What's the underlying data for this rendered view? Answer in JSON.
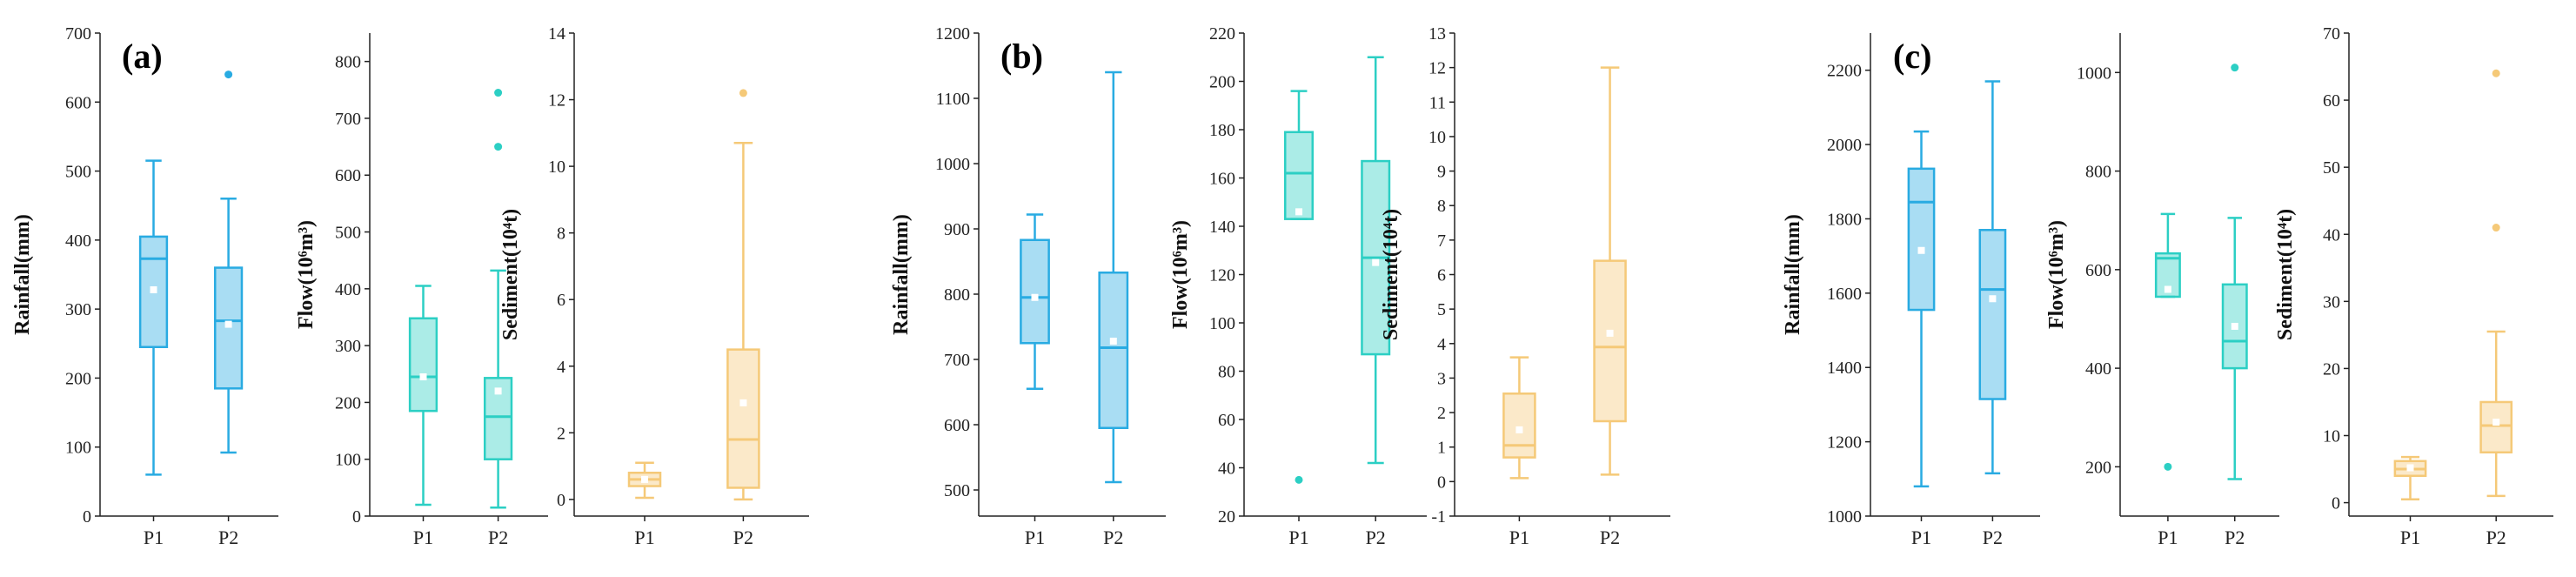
{
  "colors": {
    "rainfall": "#29ABE2",
    "flow": "#2CCFC4",
    "sediment": "#F5C978",
    "mean_marker": "#ffffff",
    "axis": "#222222"
  },
  "chart_data": [
    {
      "panel": "(a)",
      "type": "box",
      "variable": "rainfall",
      "ylabel": "Rainfall(mm)",
      "ylim": [
        0,
        700
      ],
      "yticks": [
        0,
        100,
        200,
        300,
        400,
        500,
        600,
        700
      ],
      "categories": [
        "P1",
        "P2"
      ],
      "boxes": [
        {
          "category": "P1",
          "min": 60,
          "q1": 245,
          "median": 373,
          "q3": 405,
          "max": 515,
          "mean": 328,
          "outliers": []
        },
        {
          "category": "P2",
          "min": 92,
          "q1": 185,
          "median": 283,
          "q3": 360,
          "max": 460,
          "mean": 278,
          "outliers": [
            640
          ]
        }
      ]
    },
    {
      "panel": "(a)",
      "type": "box",
      "variable": "flow",
      "ylabel": "Flow(10⁶m³)",
      "ylim": [
        0,
        850
      ],
      "yticks": [
        0,
        100,
        200,
        300,
        400,
        500,
        600,
        700,
        800
      ],
      "categories": [
        "P1",
        "P2"
      ],
      "boxes": [
        {
          "category": "P1",
          "min": 20,
          "q1": 185,
          "median": 245,
          "q3": 348,
          "max": 405,
          "mean": 245,
          "outliers": []
        },
        {
          "category": "P2",
          "min": 15,
          "q1": 100,
          "median": 175,
          "q3": 243,
          "max": 432,
          "mean": 220,
          "outliers": [
            650,
            745
          ]
        }
      ]
    },
    {
      "panel": "(a)",
      "type": "box",
      "variable": "sediment",
      "ylabel": "Sediment(10⁴t)",
      "ylim": [
        -0.5,
        14
      ],
      "yticks": [
        0,
        2,
        4,
        6,
        8,
        10,
        12,
        14
      ],
      "categories": [
        "P1",
        "P2"
      ],
      "boxes": [
        {
          "category": "P1",
          "min": 0.05,
          "q1": 0.4,
          "median": 0.6,
          "q3": 0.8,
          "max": 1.1,
          "mean": 0.6,
          "outliers": []
        },
        {
          "category": "P2",
          "min": 0.0,
          "q1": 0.35,
          "median": 1.8,
          "q3": 4.5,
          "max": 10.7,
          "mean": 2.9,
          "outliers": [
            12.2
          ]
        }
      ]
    },
    {
      "panel": "(b)",
      "type": "box",
      "variable": "rainfall",
      "ylabel": "Rainfall(mm)",
      "ylim": [
        460,
        1200
      ],
      "yticks": [
        500,
        600,
        700,
        800,
        900,
        1000,
        1100,
        1200
      ],
      "categories": [
        "P1",
        "P2"
      ],
      "boxes": [
        {
          "category": "P1",
          "min": 655,
          "q1": 725,
          "median": 795,
          "q3": 883,
          "max": 922,
          "mean": 795,
          "outliers": []
        },
        {
          "category": "P2",
          "min": 512,
          "q1": 595,
          "median": 718,
          "q3": 833,
          "max": 1140,
          "mean": 728,
          "outliers": []
        }
      ]
    },
    {
      "panel": "(b)",
      "type": "box",
      "variable": "flow",
      "ylabel": "Flow(10⁶m³)",
      "ylim": [
        20,
        220
      ],
      "yticks": [
        20,
        40,
        60,
        80,
        100,
        120,
        140,
        160,
        180,
        200,
        220
      ],
      "categories": [
        "P1",
        "P2"
      ],
      "boxes": [
        {
          "category": "P1",
          "min": 143,
          "q1": 143,
          "median": 162,
          "q3": 179,
          "max": 196,
          "mean": 146,
          "outliers": [
            35
          ]
        },
        {
          "category": "P2",
          "min": 42,
          "q1": 87,
          "median": 127,
          "q3": 167,
          "max": 210,
          "mean": 125,
          "outliers": []
        }
      ]
    },
    {
      "panel": "(b)",
      "type": "box",
      "variable": "sediment",
      "ylabel": "Sediment(10⁴t)",
      "ylim": [
        -1,
        13
      ],
      "yticks": [
        -1,
        0,
        1,
        2,
        3,
        4,
        5,
        6,
        7,
        8,
        9,
        10,
        11,
        12,
        13
      ],
      "categories": [
        "P1",
        "P2"
      ],
      "boxes": [
        {
          "category": "P1",
          "min": 0.1,
          "q1": 0.7,
          "median": 1.05,
          "q3": 2.55,
          "max": 3.6,
          "mean": 1.5,
          "outliers": []
        },
        {
          "category": "P2",
          "min": 0.2,
          "q1": 1.75,
          "median": 3.9,
          "q3": 6.4,
          "max": 12.0,
          "mean": 4.3,
          "outliers": []
        }
      ]
    },
    {
      "panel": "(c)",
      "type": "box",
      "variable": "rainfall",
      "ylabel": "Rainfall(mm)",
      "ylim": [
        1000,
        2300
      ],
      "yticks": [
        1000,
        1200,
        1400,
        1600,
        1800,
        2000,
        2200
      ],
      "categories": [
        "P1",
        "P2"
      ],
      "boxes": [
        {
          "category": "P1",
          "min": 1080,
          "q1": 1555,
          "median": 1845,
          "q3": 1935,
          "max": 2035,
          "mean": 1715,
          "outliers": []
        },
        {
          "category": "P2",
          "min": 1115,
          "q1": 1315,
          "median": 1610,
          "q3": 1770,
          "max": 2170,
          "mean": 1585,
          "outliers": []
        }
      ]
    },
    {
      "panel": "(c)",
      "type": "box",
      "variable": "flow",
      "ylabel": "Flow(10⁶m³)",
      "ylim": [
        100,
        1080
      ],
      "yticks": [
        200,
        400,
        600,
        800,
        1000
      ],
      "categories": [
        "P1",
        "P2"
      ],
      "boxes": [
        {
          "category": "P1",
          "min": 545,
          "q1": 545,
          "median": 623,
          "q3": 633,
          "max": 713,
          "mean": 560,
          "outliers": [
            200
          ]
        },
        {
          "category": "P2",
          "min": 175,
          "q1": 400,
          "median": 455,
          "q3": 570,
          "max": 705,
          "mean": 485,
          "outliers": [
            1010
          ]
        }
      ]
    },
    {
      "panel": "(c)",
      "type": "box",
      "variable": "sediment",
      "ylabel": "Sediment(10⁴t)",
      "ylim": [
        -2,
        70
      ],
      "yticks": [
        0,
        10,
        20,
        30,
        40,
        50,
        60,
        70
      ],
      "categories": [
        "P1",
        "P2"
      ],
      "boxes": [
        {
          "category": "P1",
          "min": 0.5,
          "q1": 4.0,
          "median": 5.0,
          "q3": 6.2,
          "max": 6.8,
          "mean": 5.2,
          "outliers": []
        },
        {
          "category": "P2",
          "min": 1.0,
          "q1": 7.5,
          "median": 11.5,
          "q3": 15.0,
          "max": 25.5,
          "mean": 12.0,
          "outliers": [
            41.0,
            64.0
          ]
        }
      ]
    }
  ]
}
